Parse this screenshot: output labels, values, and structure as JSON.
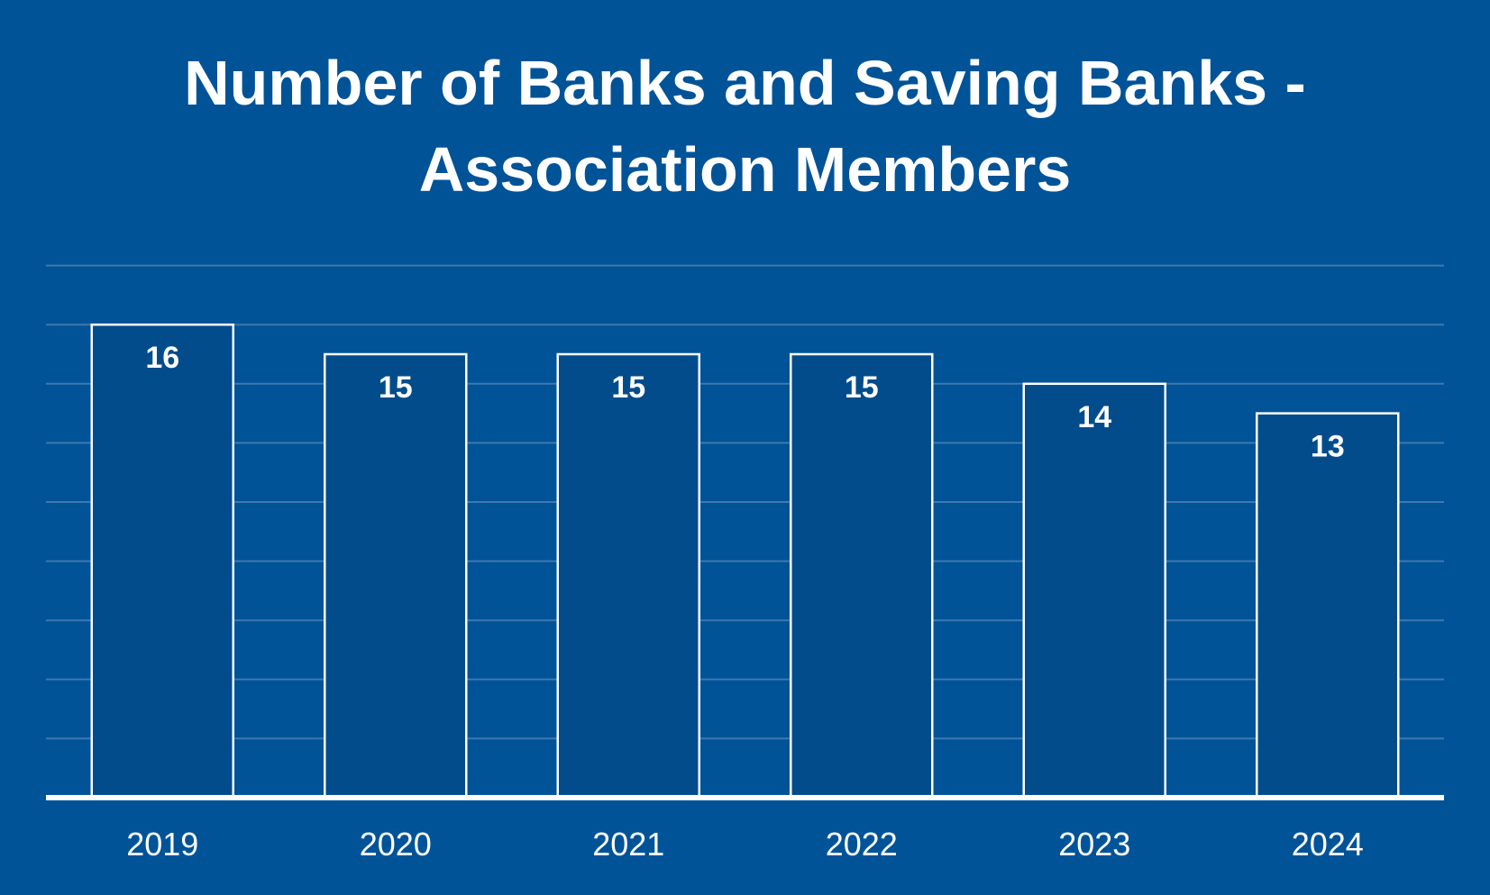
{
  "chart_data": {
    "type": "bar",
    "title_lines": [
      "Number of Banks and Saving Banks -",
      "Association Members"
    ],
    "categories": [
      "2019",
      "2020",
      "2021",
      "2022",
      "2023",
      "2024"
    ],
    "values": [
      16,
      15,
      15,
      15,
      14,
      13
    ],
    "data_labels": [
      "16",
      "15",
      "15",
      "15",
      "14",
      "13"
    ],
    "xlabel": "",
    "ylabel": "",
    "ylim": [
      0,
      18
    ],
    "y_gridline_step": 2,
    "grid": true,
    "y_axis_tick_labels_visible": false,
    "legend": "none"
  },
  "colors": {
    "background": "#015398",
    "bar_fill": "#024c8c",
    "bar_stroke": "#ffffff",
    "gridline": "#3f78ae",
    "axis_line": "#ffffff",
    "text": "#ffffff"
  }
}
